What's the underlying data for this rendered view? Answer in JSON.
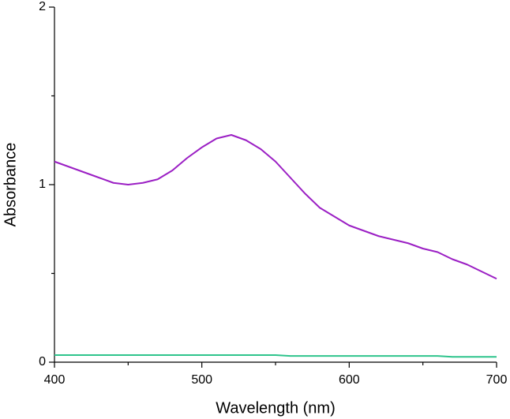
{
  "chart_data": {
    "type": "line",
    "x_label": "Wavelength (nm)",
    "y_label": "Absorbance",
    "x": [
      400,
      410,
      420,
      430,
      440,
      450,
      460,
      470,
      480,
      490,
      500,
      510,
      520,
      530,
      540,
      550,
      560,
      570,
      580,
      590,
      600,
      610,
      620,
      630,
      640,
      650,
      660,
      670,
      680,
      690,
      700
    ],
    "series": [
      {
        "color": "#9b1fc4",
        "values": [
          1.13,
          1.1,
          1.07,
          1.04,
          1.01,
          1.0,
          1.01,
          1.03,
          1.08,
          1.15,
          1.21,
          1.26,
          1.28,
          1.25,
          1.2,
          1.13,
          1.04,
          0.95,
          0.87,
          0.82,
          0.77,
          0.74,
          0.71,
          0.69,
          0.67,
          0.64,
          0.62,
          0.58,
          0.55,
          0.51,
          0.47
        ]
      },
      {
        "color": "#2ec48c",
        "values": [
          0.04,
          0.04,
          0.04,
          0.04,
          0.04,
          0.04,
          0.04,
          0.04,
          0.04,
          0.04,
          0.04,
          0.04,
          0.04,
          0.04,
          0.04,
          0.04,
          0.035,
          0.035,
          0.035,
          0.035,
          0.035,
          0.035,
          0.035,
          0.035,
          0.035,
          0.035,
          0.035,
          0.03,
          0.03,
          0.03,
          0.03
        ]
      }
    ],
    "xlim": [
      400,
      700
    ],
    "xticks": [
      400,
      500,
      600,
      700
    ],
    "xminorticks": [
      450,
      550,
      650
    ],
    "ylim": [
      0,
      2
    ],
    "yticks": [
      0,
      1,
      2
    ],
    "yminorticks": [
      0.5,
      1.5
    ],
    "grid": false
  }
}
